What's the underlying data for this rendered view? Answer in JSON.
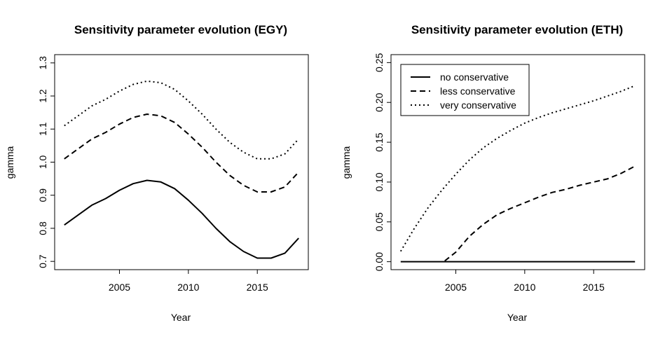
{
  "chart_data": [
    {
      "type": "line",
      "title": "Sensitivity parameter evolution (EGY)",
      "xlabel": "Year",
      "ylabel": "gamma",
      "xlim": [
        2000.3,
        2018.7
      ],
      "ylim": [
        0.675,
        1.325
      ],
      "xticks": [
        2005,
        2010,
        2015
      ],
      "xtick_labels": [
        "2005",
        "2010",
        "2015"
      ],
      "yticks": [
        0.7,
        0.8,
        0.9,
        1.0,
        1.1,
        1.2,
        1.3
      ],
      "ytick_labels": [
        "0.7",
        "0.8",
        "0.9",
        "1.0",
        "1.1",
        "1.2",
        "1.3"
      ],
      "x": [
        2001,
        2002,
        2003,
        2004,
        2005,
        2006,
        2007,
        2008,
        2009,
        2010,
        2011,
        2012,
        2013,
        2014,
        2015,
        2016,
        2017,
        2018
      ],
      "series": [
        {
          "name": "no conservative",
          "style": "solid",
          "values": [
            0.81,
            0.84,
            0.87,
            0.89,
            0.915,
            0.935,
            0.945,
            0.94,
            0.92,
            0.885,
            0.845,
            0.8,
            0.76,
            0.73,
            0.71,
            0.71,
            0.725,
            0.77
          ]
        },
        {
          "name": "less conservative",
          "style": "dashed",
          "values": [
            1.01,
            1.04,
            1.07,
            1.09,
            1.115,
            1.135,
            1.145,
            1.14,
            1.12,
            1.085,
            1.045,
            1.0,
            0.96,
            0.93,
            0.91,
            0.91,
            0.925,
            0.97
          ]
        },
        {
          "name": "very conservative",
          "style": "dotted",
          "values": [
            1.11,
            1.14,
            1.17,
            1.19,
            1.215,
            1.235,
            1.245,
            1.24,
            1.22,
            1.185,
            1.145,
            1.1,
            1.06,
            1.03,
            1.01,
            1.01,
            1.025,
            1.07
          ]
        }
      ]
    },
    {
      "type": "line",
      "title": "Sensitivity parameter evolution (ETH)",
      "xlabel": "Year",
      "ylabel": "gamma",
      "xlim": [
        2000.3,
        2018.7
      ],
      "ylim": [
        -0.01,
        0.26
      ],
      "xticks": [
        2005,
        2010,
        2015
      ],
      "xtick_labels": [
        "2005",
        "2010",
        "2015"
      ],
      "yticks": [
        0.0,
        0.05,
        0.1,
        0.15,
        0.2,
        0.25
      ],
      "ytick_labels": [
        "0.00",
        "0.05",
        "0.10",
        "0.15",
        "0.20",
        "0.25"
      ],
      "legend": {
        "position": "top-left",
        "entries": [
          "no conservative",
          "less conservative",
          "very conservative"
        ]
      },
      "series": [
        {
          "name": "no conservative",
          "style": "solid",
          "x": [
            2001,
            2002,
            2003,
            2004,
            2005,
            2006,
            2007,
            2008,
            2009,
            2010,
            2011,
            2012,
            2013,
            2014,
            2015,
            2016,
            2017,
            2018
          ],
          "values": [
            0,
            0,
            0,
            0,
            0,
            0,
            0,
            0,
            0,
            0,
            0,
            0,
            0,
            0,
            0,
            0,
            0,
            0
          ]
        },
        {
          "name": "less conservative",
          "style": "dashed",
          "x": [
            2004.2,
            2005,
            2006,
            2007,
            2008,
            2009,
            2010,
            2011,
            2012,
            2013,
            2014,
            2015,
            2016,
            2017,
            2018
          ],
          "values": [
            0.001,
            0.012,
            0.032,
            0.047,
            0.059,
            0.067,
            0.074,
            0.081,
            0.087,
            0.091,
            0.096,
            0.1,
            0.104,
            0.111,
            0.12
          ]
        },
        {
          "name": "very conservative",
          "style": "dotted",
          "x": [
            2001,
            2002,
            2003,
            2004,
            2005,
            2006,
            2007,
            2008,
            2009,
            2010,
            2011,
            2012,
            2013,
            2014,
            2015,
            2016,
            2017,
            2018
          ],
          "values": [
            0.013,
            0.042,
            0.068,
            0.09,
            0.11,
            0.128,
            0.143,
            0.155,
            0.165,
            0.174,
            0.181,
            0.187,
            0.192,
            0.197,
            0.202,
            0.208,
            0.214,
            0.221
          ]
        }
      ]
    }
  ],
  "colors": {
    "line": "#000000",
    "background": "#ffffff"
  }
}
